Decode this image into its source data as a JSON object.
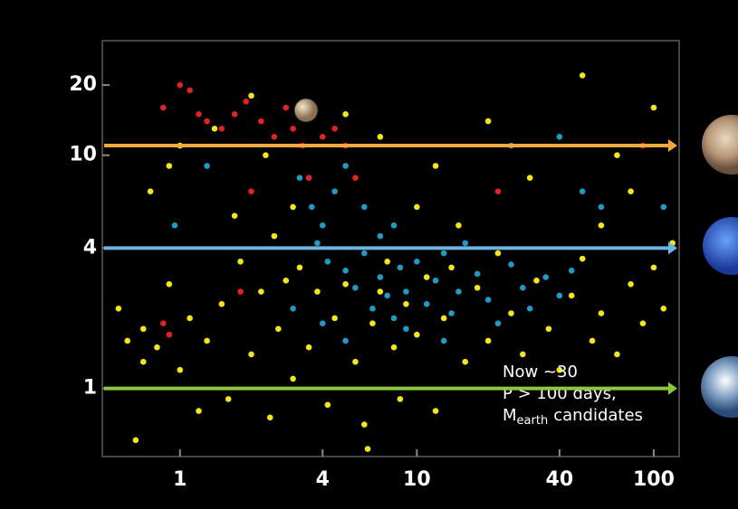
{
  "chart_data": {
    "type": "scatter",
    "xlog": true,
    "ylog": true,
    "xlim": [
      0.47,
      128
    ],
    "ylim": [
      0.51,
      31
    ],
    "xticks": [
      1,
      4,
      10,
      40,
      100
    ],
    "yticks": [
      1,
      4,
      10,
      20
    ],
    "reference_lines": [
      {
        "value": 11,
        "color": "#f2a93b"
      },
      {
        "value": 4,
        "color": "#6fb3e3"
      },
      {
        "value": 1,
        "color": "#8dc63f"
      }
    ],
    "annotation": {
      "lines": [
        "Now ~30",
        "P > 100 days,"
      ],
      "last": [
        "M",
        "earth",
        "candidates"
      ]
    },
    "series": [
      {
        "color": "#f5e61a",
        "x": [
          0.55,
          0.6,
          0.7,
          0.8,
          0.9,
          1.0,
          1.1,
          1.2,
          1.3,
          1.5,
          1.6,
          1.8,
          2.0,
          2.2,
          2.4,
          2.6,
          2.8,
          3.0,
          3.2,
          3.5,
          3.8,
          4.2,
          4.5,
          5,
          5.5,
          6,
          6.5,
          7,
          7.5,
          8,
          8.5,
          9,
          10,
          11,
          12,
          13,
          14,
          16,
          18,
          20,
          22,
          25,
          28,
          32,
          36,
          40,
          45,
          50,
          55,
          60,
          70,
          80,
          90,
          100,
          110,
          120,
          0.75,
          0.9,
          1.4,
          2.0,
          2.3,
          3,
          1.0,
          5,
          7,
          10,
          12,
          15,
          20,
          30,
          50,
          70,
          100,
          60,
          80,
          1.7,
          2.5,
          0.65,
          6.2,
          0.7
        ],
        "values": [
          2.2,
          1.6,
          1.3,
          1.5,
          2.8,
          1.2,
          2.0,
          0.8,
          1.6,
          2.3,
          0.9,
          3.5,
          1.4,
          2.6,
          0.75,
          1.8,
          2.9,
          1.1,
          3.3,
          1.5,
          2.6,
          0.85,
          2.0,
          2.8,
          1.3,
          0.7,
          1.9,
          2.6,
          3.5,
          1.5,
          0.9,
          2.3,
          1.7,
          3.0,
          0.8,
          2.0,
          3.3,
          1.3,
          2.7,
          1.6,
          3.8,
          2.1,
          1.4,
          2.9,
          1.8,
          1.2,
          2.5,
          3.6,
          1.6,
          2.1,
          1.4,
          2.8,
          1.9,
          3.3,
          2.2,
          4.2,
          7,
          9,
          13,
          18,
          10,
          6,
          11,
          15,
          12,
          6,
          9,
          5,
          14,
          8,
          22,
          10,
          16,
          5,
          7,
          5.5,
          4.5,
          0.6,
          0.55,
          1.8
        ]
      },
      {
        "color": "#1f9bc4",
        "x": [
          3.2,
          3.6,
          4.0,
          4.5,
          5,
          6,
          7,
          8,
          3.8,
          4.2,
          5,
          5.5,
          6,
          6.5,
          7,
          7.5,
          8,
          8.5,
          9,
          10,
          11,
          12,
          13,
          14,
          15,
          16,
          18,
          20,
          22,
          25,
          28,
          30,
          35,
          40,
          45,
          50,
          60,
          25,
          40,
          0.95,
          1.3,
          110,
          5,
          9,
          13,
          3,
          4
        ],
        "values": [
          8,
          6,
          5,
          7,
          9,
          6,
          4.5,
          5,
          4.2,
          3.5,
          3.2,
          2.7,
          3.8,
          2.2,
          3,
          2.5,
          2.0,
          3.3,
          2.6,
          3.5,
          2.3,
          2.9,
          3.8,
          2.1,
          2.6,
          4.2,
          3.1,
          2.4,
          1.9,
          3.4,
          2.7,
          2.2,
          3.0,
          2.5,
          3.2,
          7,
          6,
          11,
          12,
          5,
          9,
          6,
          1.6,
          1.8,
          1.6,
          2.2,
          1.9
        ]
      },
      {
        "color": "#e02424",
        "x": [
          0.85,
          1.0,
          1.1,
          1.2,
          1.3,
          1.5,
          1.7,
          1.9,
          2.2,
          2.5,
          2.8,
          3.0,
          3.3,
          3.6,
          4.0,
          4.5,
          5.0,
          2.0,
          3.5,
          1.8,
          0.9,
          0.85,
          5.5,
          22,
          90
        ],
        "values": [
          16,
          20,
          19,
          15,
          14,
          13,
          15,
          17,
          14,
          12,
          16,
          13,
          11,
          15,
          12,
          13,
          11,
          7,
          8,
          2.6,
          1.7,
          1.9,
          8,
          7,
          11
        ]
      }
    ]
  }
}
